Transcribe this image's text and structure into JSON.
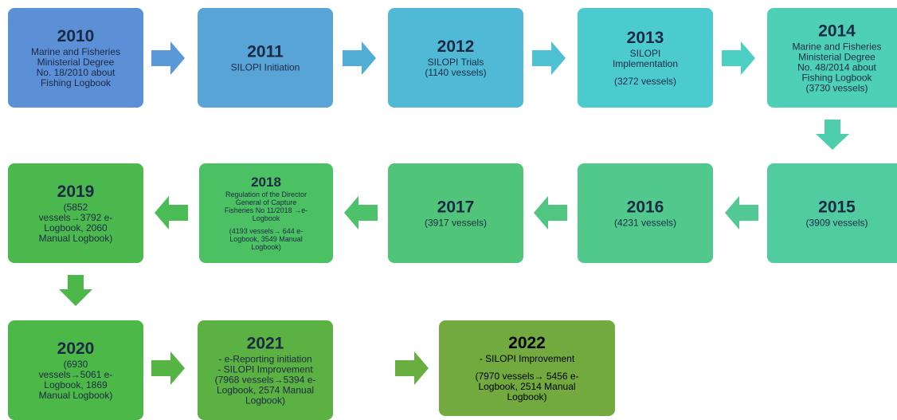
{
  "nodes": [
    {
      "year": "2010",
      "paragraphs": [
        [
          "Marine and Fisheries",
          "Ministerial Degree",
          "No. 18/2010 about",
          "Fishing Logbook"
        ]
      ]
    },
    {
      "year": "2011",
      "paragraphs": [
        [
          "SILOPI Initiation"
        ]
      ]
    },
    {
      "year": "2012",
      "paragraphs": [
        [
          "SILOPI Trials",
          "(1140 vessels)"
        ]
      ]
    },
    {
      "year": "2013",
      "paragraphs": [
        [
          "SILOPI",
          "Implementation"
        ],
        [
          "(3272 vessels)"
        ]
      ]
    },
    {
      "year": "2014",
      "paragraphs": [
        [
          "Marine and Fisheries",
          "Ministerial Degree",
          "No. 48/2014 about",
          "Fishing Logbook",
          "(3730 vessels)"
        ]
      ]
    },
    {
      "year": "2015",
      "paragraphs": [
        [
          "(3909 vessels)"
        ]
      ]
    },
    {
      "year": "2016",
      "paragraphs": [
        [
          "(4231 vessels)"
        ]
      ]
    },
    {
      "year": "2017",
      "paragraphs": [
        [
          "(3917 vessels)"
        ]
      ]
    },
    {
      "year": "2018",
      "paragraphs": [
        [
          "Regulation of the Director",
          "General of Capture",
          "Fisheries No 11/2018 →e-",
          "Logbook"
        ],
        [
          "(4193 vessels→ 644 e-",
          "Logbook, 3549 Manual",
          "Logbook)"
        ]
      ]
    },
    {
      "year": "2019",
      "paragraphs": [
        [
          "(5852",
          "vessels→3792 e-",
          "Logbook, 2060",
          "Manual Logbook)"
        ]
      ]
    },
    {
      "year": "2020",
      "paragraphs": [
        [
          "(6930",
          "vessels→5061 e-",
          "Logbook, 1869",
          "Manual Logbook)"
        ]
      ]
    },
    {
      "year": "2021",
      "paragraphs": [
        [
          "- e-Reporting initiation",
          "- SILOPI Improvement",
          "(7968 vessels→5394 e-",
          "Logbook, 2574 Manual",
          "Logbook)"
        ]
      ]
    },
    {
      "year": "2022",
      "paragraphs": [
        [
          "- SILOPI Improvement"
        ],
        [
          "(7970 vessels→ 5456 e-",
          "Logbook, 2514 Manual",
          "Logbook)"
        ]
      ]
    }
  ]
}
